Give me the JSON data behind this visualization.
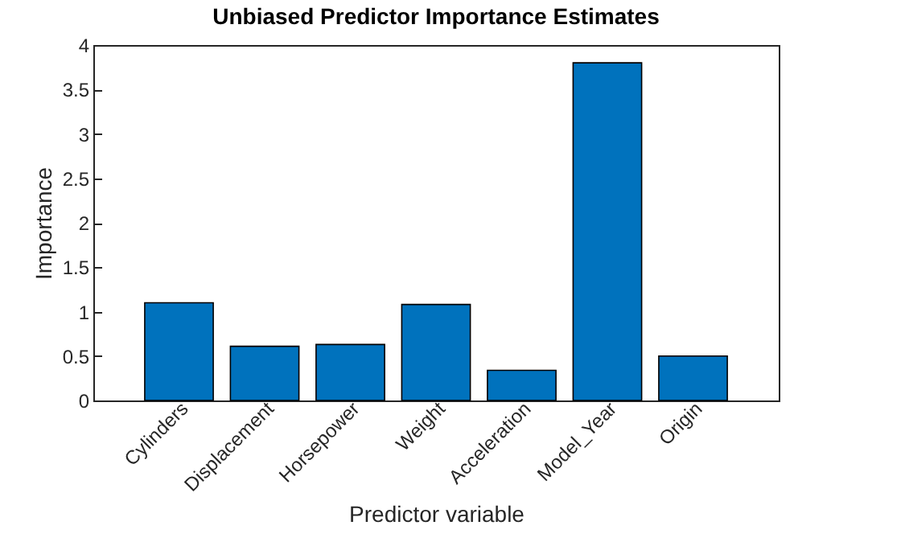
{
  "chart_data": {
    "type": "bar",
    "title": "Unbiased Predictor Importance Estimates",
    "xlabel": "Predictor variable",
    "ylabel": "Importance",
    "categories": [
      "Cylinders",
      "Displacement",
      "Horsepower",
      "Weight",
      "Acceleration",
      "Model_Year",
      "Origin"
    ],
    "values": [
      1.1,
      0.61,
      0.63,
      1.08,
      0.34,
      3.8,
      0.5
    ],
    "color": "#0072bd",
    "ylim": [
      0,
      4
    ],
    "yticks": [
      0,
      0.5,
      1,
      1.5,
      2,
      2.5,
      3,
      3.5,
      4
    ],
    "grid": false
  }
}
